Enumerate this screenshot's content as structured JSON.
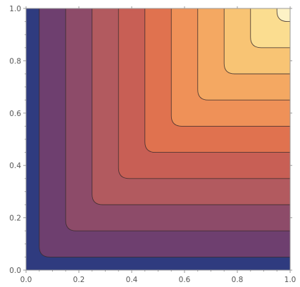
{
  "chart_data": {
    "type": "contour",
    "function": "min(x, y)",
    "xlim": [
      0.0,
      1.0
    ],
    "ylim": [
      0.0,
      1.0
    ],
    "contour_levels": [
      0.05,
      0.15,
      0.25,
      0.35,
      0.45,
      0.55,
      0.65,
      0.75,
      0.85,
      0.95
    ],
    "corner_rounding": 0.04,
    "x_ticks": [
      0.0,
      0.2,
      0.4,
      0.6,
      0.8,
      1.0
    ],
    "x_tick_labels": [
      "0.0",
      "0.2",
      "0.4",
      "0.6",
      "0.8",
      "1.0"
    ],
    "y_ticks": [
      0.0,
      0.2,
      0.4,
      0.6,
      0.8,
      1.0
    ],
    "y_tick_labels": [
      "0.0",
      "0.2",
      "0.4",
      "0.6",
      "0.8",
      "1.0"
    ],
    "band_colors": [
      "#2f3b7f",
      "#6e3f6f",
      "#8d4b69",
      "#b25a5f",
      "#c85f55",
      "#e0724f",
      "#ef9158",
      "#f4a862",
      "#f8c474",
      "#fbdd90",
      "#fdf2c6"
    ],
    "contour_line_color": "#3a2c2c",
    "frame_color": "#9a9a9a",
    "title": "",
    "xlabel": "",
    "ylabel": ""
  }
}
